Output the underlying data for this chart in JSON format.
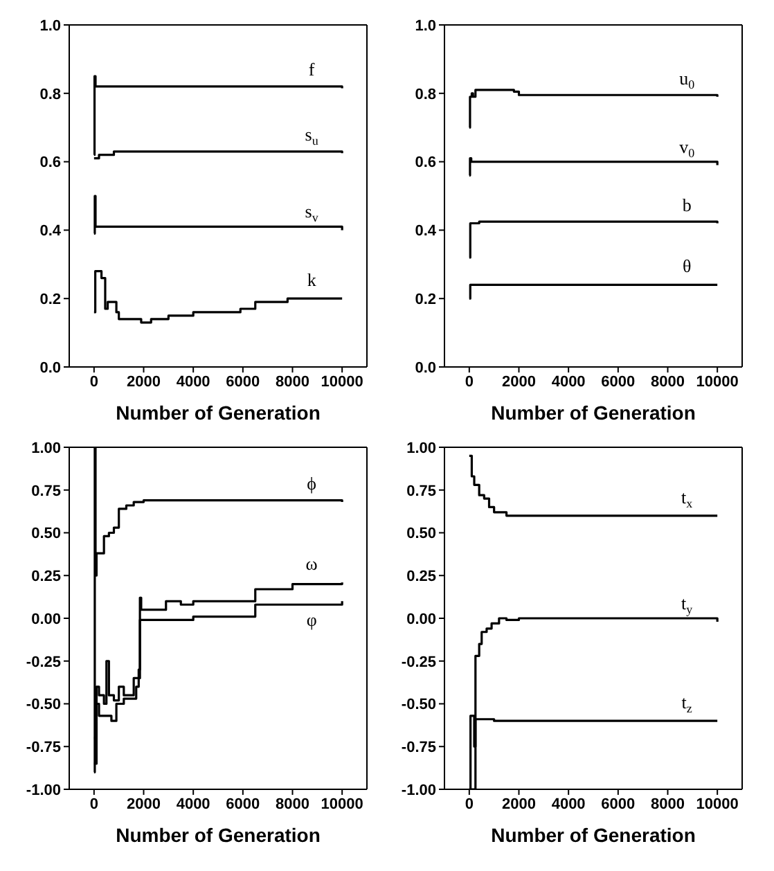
{
  "chart_data": [
    {
      "type": "step",
      "xlabel": "Number of Generation",
      "xlim": [
        -1000,
        11000
      ],
      "xticks": [
        0,
        2000,
        4000,
        6000,
        8000,
        10000
      ],
      "ylim": [
        0,
        1
      ],
      "yticks": [
        {
          "value": 0,
          "label": "0.0"
        },
        {
          "value": 0.2,
          "label": "0.2"
        },
        {
          "value": 0.4,
          "label": "0.4"
        },
        {
          "value": 0.6,
          "label": "0.6"
        },
        {
          "value": 0.8,
          "label": "0.8"
        },
        {
          "value": 1,
          "label": "1.0"
        }
      ],
      "series": [
        {
          "name": "f",
          "color": "#000000",
          "x": [
            0,
            20,
            60,
            10000
          ],
          "values": [
            0.62,
            0.85,
            0.82,
            0.815
          ]
        },
        {
          "name": "s$_{u}$",
          "color": "#000000",
          "x": [
            0,
            200,
            800,
            10000
          ],
          "values": [
            0.61,
            0.62,
            0.63,
            0.625
          ]
        },
        {
          "name": "s$_{v}$",
          "color": "#000000",
          "x": [
            0,
            30,
            60,
            10000
          ],
          "values": [
            0.39,
            0.5,
            0.41,
            0.4
          ]
        },
        {
          "name": "k",
          "color": "#000000",
          "x": [
            0,
            50,
            300,
            450,
            550,
            900,
            1000,
            1900,
            2300,
            3000,
            4000,
            5900,
            6500,
            7800,
            10000
          ],
          "values": [
            0.16,
            0.28,
            0.26,
            0.17,
            0.19,
            0.16,
            0.14,
            0.13,
            0.14,
            0.15,
            0.16,
            0.17,
            0.19,
            0.2,
            0.2
          ]
        }
      ]
    },
    {
      "type": "step",
      "xlabel": "Number of Generation",
      "xlim": [
        -1000,
        11000
      ],
      "xticks": [
        0,
        2000,
        4000,
        6000,
        8000,
        10000
      ],
      "ylim": [
        0,
        1
      ],
      "yticks": [
        {
          "value": 0,
          "label": "0.0"
        },
        {
          "value": 0.2,
          "label": "0.2"
        },
        {
          "value": 0.4,
          "label": "0.4"
        },
        {
          "value": 0.6,
          "label": "0.6"
        },
        {
          "value": 0.8,
          "label": "0.8"
        },
        {
          "value": 1,
          "label": "1.0"
        }
      ],
      "series": [
        {
          "name": "u$_{0}$",
          "color": "#000000",
          "x": [
            0,
            30,
            100,
            150,
            250,
            1000,
            1800,
            2000,
            10000
          ],
          "values": [
            0.7,
            0.79,
            0.8,
            0.79,
            0.81,
            0.81,
            0.805,
            0.795,
            0.79
          ]
        },
        {
          "name": "v$_{0}$",
          "color": "#000000",
          "x": [
            0,
            30,
            80,
            10000
          ],
          "values": [
            0.56,
            0.61,
            0.6,
            0.59
          ]
        },
        {
          "name": "b",
          "color": "#000000",
          "x": [
            0,
            40,
            400,
            10000
          ],
          "values": [
            0.32,
            0.42,
            0.425,
            0.42
          ]
        },
        {
          "name": "θ",
          "color": "#000000",
          "x": [
            0,
            40,
            10000
          ],
          "values": [
            0.2,
            0.24,
            0.24
          ]
        }
      ]
    },
    {
      "type": "step",
      "xlabel": "Number of Generation",
      "xlim": [
        -1000,
        11000
      ],
      "xticks": [
        0,
        2000,
        4000,
        6000,
        8000,
        10000
      ],
      "ylim": [
        -1,
        1
      ],
      "yticks": [
        {
          "value": -1,
          "label": "-1.00"
        },
        {
          "value": -0.75,
          "label": "-0.75"
        },
        {
          "value": -0.5,
          "label": "-0.50"
        },
        {
          "value": -0.25,
          "label": "-0.25"
        },
        {
          "value": 0,
          "label": "0.00"
        },
        {
          "value": 0.25,
          "label": "0.25"
        },
        {
          "value": 0.5,
          "label": "0.50"
        },
        {
          "value": 0.75,
          "label": "0.75"
        },
        {
          "value": 1,
          "label": "1.00"
        }
      ],
      "series": [
        {
          "name": "ϕ",
          "color": "#000000",
          "x": [
            0,
            30,
            60,
            100,
            400,
            600,
            800,
            1000,
            1300,
            1600,
            2000,
            5000,
            10000
          ],
          "values": [
            -0.9,
            1.0,
            0.25,
            0.38,
            0.48,
            0.5,
            0.53,
            0.64,
            0.66,
            0.68,
            0.69,
            0.69,
            0.68
          ]
        },
        {
          "name": "ω",
          "color": "#000000",
          "x": [
            0,
            100,
            200,
            400,
            500,
            600,
            800,
            1000,
            1200,
            1600,
            1800,
            1850,
            1900,
            2900,
            3500,
            4000,
            6500,
            8000,
            10000
          ],
          "values": [
            -0.85,
            -0.4,
            -0.45,
            -0.5,
            -0.25,
            -0.45,
            -0.48,
            -0.4,
            -0.45,
            -0.35,
            -0.3,
            0.12,
            0.05,
            0.1,
            0.08,
            0.1,
            0.17,
            0.2,
            0.21
          ]
        },
        {
          "name": "φ",
          "color": "#000000",
          "x": [
            0,
            100,
            200,
            700,
            900,
            1200,
            1700,
            1800,
            1850,
            2400,
            4000,
            6500,
            8000,
            10000
          ],
          "values": [
            -0.7,
            -0.5,
            -0.57,
            -0.6,
            -0.5,
            -0.47,
            -0.4,
            -0.35,
            -0.01,
            -0.01,
            0.01,
            0.08,
            0.08,
            0.1
          ]
        }
      ]
    },
    {
      "type": "step",
      "xlabel": "Number of Generation",
      "xlim": [
        -1000,
        11000
      ],
      "xticks": [
        0,
        2000,
        4000,
        6000,
        8000,
        10000
      ],
      "ylim": [
        -1,
        1
      ],
      "yticks": [
        {
          "value": -1,
          "label": "-1.00"
        },
        {
          "value": -0.75,
          "label": "-0.75"
        },
        {
          "value": -0.5,
          "label": "-0.50"
        },
        {
          "value": -0.25,
          "label": "-0.25"
        },
        {
          "value": 0,
          "label": "0.00"
        },
        {
          "value": 0.25,
          "label": "0.25"
        },
        {
          "value": 0.5,
          "label": "0.50"
        },
        {
          "value": 0.75,
          "label": "0.75"
        },
        {
          "value": 1,
          "label": "1.00"
        }
      ],
      "series": [
        {
          "name": "t$_{x}$",
          "color": "#000000",
          "x": [
            0,
            100,
            200,
            400,
            600,
            800,
            1000,
            1500,
            10000
          ],
          "values": [
            0.95,
            0.83,
            0.78,
            0.72,
            0.7,
            0.65,
            0.62,
            0.6,
            0.6
          ]
        },
        {
          "name": "t$_{y}$",
          "color": "#000000",
          "x": [
            0,
            250,
            400,
            500,
            700,
            900,
            1200,
            1500,
            2000,
            6000,
            10000
          ],
          "values": [
            -1.0,
            -0.22,
            -0.15,
            -0.08,
            -0.06,
            -0.03,
            0.0,
            -0.01,
            0.0,
            0.0,
            -0.02
          ]
        },
        {
          "name": "t$_{z}$",
          "color": "#000000",
          "x": [
            0,
            50,
            200,
            250,
            1000,
            10000
          ],
          "values": [
            -1.0,
            -0.57,
            -0.75,
            -0.59,
            -0.6,
            -0.6
          ]
        }
      ]
    }
  ]
}
